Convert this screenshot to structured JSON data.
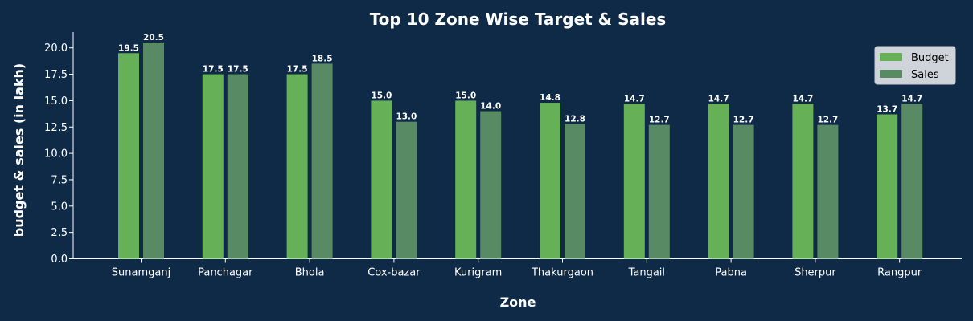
{
  "chart_data": {
    "type": "bar",
    "title": "Top 10 Zone Wise Target & Sales",
    "xlabel": "Zone",
    "ylabel": "budget & sales (in lakh)",
    "categories": [
      "Sunamganj",
      "Panchagar",
      "Bhola",
      "Cox-bazar",
      "Kurigram",
      "Thakurgaon",
      "Tangail",
      "Pabna",
      "Sherpur",
      "Rangpur"
    ],
    "series": [
      {
        "name": "Budget",
        "color": "#66b157",
        "values": [
          19.5,
          17.5,
          17.5,
          15.0,
          15.0,
          14.8,
          14.7,
          14.7,
          14.7,
          13.7
        ]
      },
      {
        "name": "Sales",
        "color": "#588a63",
        "values": [
          20.5,
          17.5,
          18.5,
          13.0,
          14.0,
          12.8,
          12.7,
          12.7,
          12.7,
          14.7
        ]
      }
    ],
    "yticks": [
      "0.0",
      "2.5",
      "5.0",
      "7.5",
      "10.0",
      "12.5",
      "15.0",
      "17.5",
      "20.0"
    ],
    "ylim": [
      0,
      21.5
    ],
    "legend_position": "top-right",
    "grid": false,
    "background": "#0f2a47"
  }
}
